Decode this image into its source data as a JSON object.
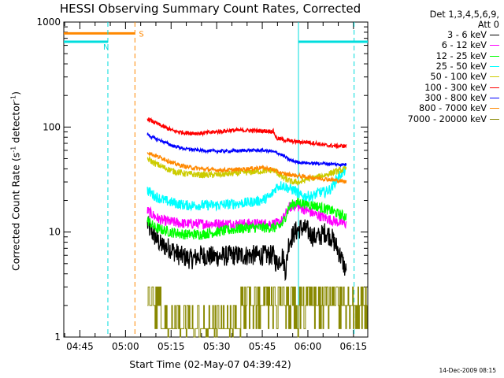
{
  "chart_data": {
    "type": "line",
    "title": "HESSI Observing Summary Count Rates, Corrected",
    "ylabel_main": "Corrected Count Rate (s",
    "ylabel_sup1": "-1",
    "ylabel_mid": " detector",
    "ylabel_sup2": "-1",
    "ylabel_end": ")",
    "xlabel": "Start Time (02-May-07 04:39:42)",
    "timestamp": "14-Dec-2009 08:15",
    "y_scale": "log",
    "ylim": [
      1,
      1000
    ],
    "xlim_minutes": [
      0,
      100
    ],
    "x_ticks": [
      {
        "t": 5.3,
        "label": "04:45"
      },
      {
        "t": 20.3,
        "label": "05:00"
      },
      {
        "t": 35.3,
        "label": "05:15"
      },
      {
        "t": 50.3,
        "label": "05:30"
      },
      {
        "t": 65.3,
        "label": "05:45"
      },
      {
        "t": 80.3,
        "label": "06:00"
      },
      {
        "t": 95.3,
        "label": "06:15"
      }
    ],
    "y_ticks": [
      {
        "v": 1,
        "label": "1"
      },
      {
        "v": 10,
        "label": "10"
      },
      {
        "v": 100,
        "label": "100"
      },
      {
        "v": 1000,
        "label": "1000"
      }
    ],
    "legend_header": [
      "Det 1,3,4,5,6,9,",
      "Att 0"
    ],
    "series": [
      {
        "name": "3 - 6 keV",
        "color": "#000000",
        "noise": 0.1,
        "points": [
          [
            27.5,
            12
          ],
          [
            28,
            11
          ],
          [
            30,
            9
          ],
          [
            32,
            7.5
          ],
          [
            35,
            7
          ],
          [
            38,
            6
          ],
          [
            42,
            5.5
          ],
          [
            45,
            6
          ],
          [
            50,
            5.8
          ],
          [
            55,
            6
          ],
          [
            58,
            6
          ],
          [
            62,
            6
          ],
          [
            66,
            6
          ],
          [
            69,
            6
          ],
          [
            70,
            5
          ],
          [
            72,
            6
          ],
          [
            73,
            4.2
          ],
          [
            74,
            8
          ],
          [
            76,
            10
          ],
          [
            78,
            11
          ],
          [
            80,
            10.5
          ],
          [
            82,
            9
          ],
          [
            84,
            9
          ],
          [
            86,
            10
          ],
          [
            88,
            9
          ],
          [
            90,
            7
          ],
          [
            92,
            5
          ],
          [
            93,
            4
          ]
        ]
      },
      {
        "name": "6 - 12 keV",
        "color": "#ff00ff",
        "noise": 0.05,
        "points": [
          [
            27.5,
            16
          ],
          [
            30,
            14
          ],
          [
            32,
            13
          ],
          [
            35,
            12.5
          ],
          [
            40,
            12
          ],
          [
            45,
            12
          ],
          [
            50,
            12
          ],
          [
            55,
            12
          ],
          [
            60,
            12
          ],
          [
            65,
            12
          ],
          [
            70,
            12
          ],
          [
            72,
            13
          ],
          [
            74,
            17
          ],
          [
            76,
            18
          ],
          [
            78,
            17
          ],
          [
            80,
            16
          ],
          [
            82,
            15
          ],
          [
            85,
            14
          ],
          [
            88,
            13
          ],
          [
            90,
            12.5
          ],
          [
            93,
            12
          ]
        ]
      },
      {
        "name": "12 - 25 keV",
        "color": "#00ff00",
        "noise": 0.05,
        "points": [
          [
            27.5,
            13
          ],
          [
            30,
            11
          ],
          [
            35,
            10
          ],
          [
            40,
            9.5
          ],
          [
            45,
            9.5
          ],
          [
            50,
            10
          ],
          [
            55,
            10.5
          ],
          [
            60,
            11
          ],
          [
            65,
            11
          ],
          [
            70,
            11
          ],
          [
            72,
            12
          ],
          [
            74,
            17
          ],
          [
            76,
            19
          ],
          [
            78,
            19
          ],
          [
            80,
            18.5
          ],
          [
            82,
            18
          ],
          [
            85,
            17
          ],
          [
            88,
            16
          ],
          [
            90,
            15
          ],
          [
            93,
            14
          ]
        ]
      },
      {
        "name": "25 - 50 keV",
        "color": "#00ffff",
        "noise": 0.05,
        "points": [
          [
            27.5,
            25
          ],
          [
            30,
            22
          ],
          [
            33,
            20
          ],
          [
            36,
            19
          ],
          [
            40,
            18
          ],
          [
            45,
            18
          ],
          [
            50,
            18
          ],
          [
            55,
            18.5
          ],
          [
            60,
            19
          ],
          [
            65,
            20
          ],
          [
            68,
            22
          ],
          [
            70,
            27
          ],
          [
            72,
            28
          ],
          [
            74,
            26
          ],
          [
            76,
            25
          ],
          [
            78,
            22
          ],
          [
            80,
            22
          ],
          [
            82,
            22
          ],
          [
            84,
            24
          ],
          [
            86,
            24
          ],
          [
            88,
            26
          ],
          [
            90,
            33
          ],
          [
            93,
            40
          ]
        ]
      },
      {
        "name": "50 - 100 keV",
        "color": "#cccc00",
        "noise": 0.03,
        "points": [
          [
            27.5,
            50
          ],
          [
            30,
            45
          ],
          [
            33,
            41
          ],
          [
            36,
            38
          ],
          [
            40,
            36
          ],
          [
            45,
            35
          ],
          [
            50,
            35
          ],
          [
            55,
            36
          ],
          [
            60,
            37
          ],
          [
            65,
            38
          ],
          [
            69,
            39
          ],
          [
            70,
            37
          ],
          [
            72,
            33
          ],
          [
            75,
            30
          ],
          [
            78,
            30
          ],
          [
            80,
            32
          ],
          [
            83,
            33
          ],
          [
            86,
            35
          ],
          [
            90,
            38
          ],
          [
            93,
            40
          ]
        ]
      },
      {
        "name": "100 - 300 keV",
        "color": "#ff0000",
        "noise": 0.02,
        "points": [
          [
            27.5,
            120
          ],
          [
            30,
            110
          ],
          [
            33,
            100
          ],
          [
            36,
            92
          ],
          [
            40,
            88
          ],
          [
            45,
            87
          ],
          [
            50,
            90
          ],
          [
            55,
            93
          ],
          [
            60,
            93
          ],
          [
            65,
            92
          ],
          [
            69,
            91
          ],
          [
            70,
            78
          ],
          [
            72,
            76
          ],
          [
            75,
            73
          ],
          [
            78,
            72
          ],
          [
            80,
            72
          ],
          [
            83,
            70
          ],
          [
            86,
            67
          ],
          [
            90,
            66
          ],
          [
            93,
            66
          ]
        ]
      },
      {
        "name": "300 - 800 keV",
        "color": "#0000ff",
        "noise": 0.015,
        "points": [
          [
            27.5,
            86
          ],
          [
            29,
            80
          ],
          [
            31,
            76
          ],
          [
            33,
            72
          ],
          [
            36,
            66
          ],
          [
            40,
            62
          ],
          [
            45,
            60
          ],
          [
            50,
            59
          ],
          [
            55,
            59
          ],
          [
            60,
            60
          ],
          [
            65,
            60
          ],
          [
            68,
            59
          ],
          [
            70,
            57
          ],
          [
            72,
            54
          ],
          [
            74,
            49
          ],
          [
            76,
            47
          ],
          [
            78,
            46
          ],
          [
            82,
            45
          ],
          [
            86,
            45
          ],
          [
            90,
            44
          ],
          [
            93,
            44
          ]
        ]
      },
      {
        "name": "800 - 7000 keV",
        "color": "#ff8800",
        "noise": 0.02,
        "points": [
          [
            27.5,
            58
          ],
          [
            29,
            55
          ],
          [
            31,
            52
          ],
          [
            33,
            50
          ],
          [
            36,
            45
          ],
          [
            40,
            42
          ],
          [
            45,
            40
          ],
          [
            50,
            39
          ],
          [
            55,
            39
          ],
          [
            60,
            40
          ],
          [
            65,
            41
          ],
          [
            68,
            40
          ],
          [
            70,
            38
          ],
          [
            72,
            36
          ],
          [
            75,
            35
          ],
          [
            78,
            34
          ],
          [
            82,
            33
          ],
          [
            86,
            32
          ],
          [
            90,
            31
          ],
          [
            93,
            30
          ]
        ]
      },
      {
        "name": "7000 - 20000 keV",
        "color": "#888800",
        "noise": 0,
        "points": [],
        "special": "quantized"
      }
    ],
    "flags": {
      "attenuator_level": 780,
      "saa_level": 650,
      "saa_label": "N",
      "att_label": "S",
      "saa_color": "#00dddd",
      "att_color": "#ff8800",
      "saa_intervals": [
        [
          0,
          14.5
        ],
        [
          77.2,
          100
        ]
      ],
      "att_intervals": [
        [
          0,
          23.4
        ]
      ],
      "saa_dashed_at": [
        14.5,
        95.5
      ],
      "att_dashed_at": [
        23.4
      ],
      "data_solid_at": [
        77.2
      ]
    }
  }
}
